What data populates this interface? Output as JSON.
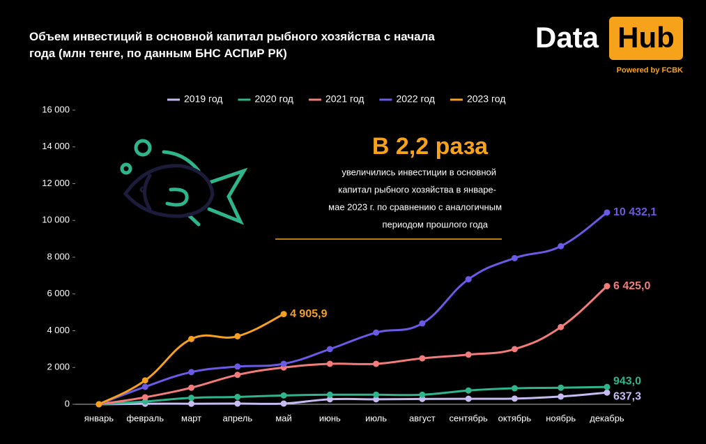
{
  "chart_data": {
    "type": "line",
    "title": "Объем инвестиций в основной капитал рыбного хозяйства с начала года (млн тенге, по данным БНС АСПиР РК)",
    "brand": {
      "left": "Data",
      "right": "Hub",
      "tagline": "Powered by FCBK"
    },
    "annotation": {
      "headline": "В 2,2 раза",
      "lines": [
        "увеличились инвестиции в основной",
        "капитал рыбного хозяйства  в январе-",
        "мае 2023 г. по сравнению с аналогичным",
        "периодом прошлого года"
      ]
    },
    "categories": [
      "январь",
      "февраль",
      "март",
      "апрель",
      "май",
      "июнь",
      "июль",
      "август",
      "сентябрь",
      "октябрь",
      "ноябрь",
      "декабрь"
    ],
    "series": [
      {
        "name": "2019 год",
        "color": "#c6bcf2",
        "values": [
          0,
          30,
          30,
          40,
          40,
          270,
          270,
          290,
          300,
          310,
          420,
          637.3
        ],
        "value_labels": [
          null,
          null,
          null,
          null,
          null,
          null,
          null,
          null,
          null,
          null,
          null,
          "637,3"
        ]
      },
      {
        "name": "2020 год",
        "color": "#2fb48c",
        "values": [
          0,
          150,
          350,
          400,
          480,
          520,
          520,
          520,
          750,
          870,
          900,
          943.0
        ],
        "value_labels": [
          null,
          null,
          null,
          null,
          null,
          null,
          null,
          null,
          null,
          null,
          null,
          "943,0"
        ]
      },
      {
        "name": "2021 год",
        "color": "#f27c7c",
        "values": [
          0,
          380,
          900,
          1600,
          2000,
          2200,
          2200,
          2500,
          2700,
          3000,
          4200,
          6425.0
        ],
        "value_labels": [
          null,
          null,
          null,
          null,
          null,
          null,
          null,
          null,
          null,
          null,
          null,
          "6 425,0"
        ]
      },
      {
        "name": "2022 год",
        "color": "#6a5ae6",
        "values": [
          0,
          950,
          1750,
          2050,
          2200,
          3000,
          3900,
          4400,
          6800,
          7950,
          8600,
          10432.1
        ],
        "value_labels": [
          null,
          null,
          null,
          null,
          null,
          null,
          null,
          null,
          null,
          null,
          null,
          "10 432,1"
        ]
      },
      {
        "name": "2023 год",
        "color": "#f5a020",
        "values": [
          0,
          1300,
          3550,
          3700,
          4905.9,
          null,
          null,
          null,
          null,
          null,
          null,
          null
        ],
        "value_labels": [
          null,
          null,
          null,
          null,
          "4 905,9",
          null,
          null,
          null,
          null,
          null,
          null,
          null
        ]
      }
    ],
    "ylim": [
      0,
      16000
    ],
    "yticks": [
      0,
      {
        "value": 2000,
        "label": "2 000"
      },
      {
        "value": 4000,
        "label": "4 000"
      },
      {
        "value": 6000,
        "label": "6 000"
      },
      {
        "value": 8000,
        "label": "8 000"
      },
      {
        "value": 10000,
        "label": "10 000"
      },
      {
        "value": 12000,
        "label": "12 000"
      },
      {
        "value": 14000,
        "label": "14 000"
      },
      {
        "value": 16000,
        "label": "16 000"
      }
    ],
    "grid": false
  }
}
